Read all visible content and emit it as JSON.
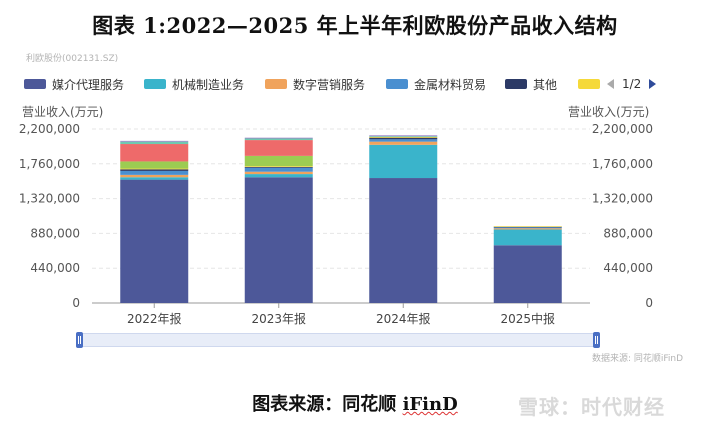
{
  "title": "图表 1:2022—2025 年上半年利欧股份产品收入结构",
  "subtitle": "利欧股份(002131.SZ)",
  "legend": {
    "items": [
      {
        "label": "媒介代理服务",
        "color": "#4d5899"
      },
      {
        "label": "机械制造业务",
        "color": "#3ab4cb"
      },
      {
        "label": "数字营销服务",
        "color": "#f0a35c"
      },
      {
        "label": "金属材料贸易",
        "color": "#4a8fd0"
      },
      {
        "label": "其他",
        "color": "#2c3a66"
      },
      {
        "label": "",
        "color": "#f5d93a"
      }
    ],
    "page": "1/2"
  },
  "y_axis_left_label": "营业收入(万元)",
  "y_axis_right_label": "营业收入(万元)",
  "data_source_note": "数据来源: 同花顺iFinD",
  "source_prefix": "图表来源：同花顺",
  "source_brand": "iFinD",
  "watermark": "雪球：时代财经",
  "chart_data": {
    "type": "bar",
    "stacked": true,
    "categories": [
      "2022年报",
      "2023年报",
      "2024年报",
      "2025中报"
    ],
    "ylim": [
      0,
      2200000
    ],
    "yticks": [
      0,
      440000,
      880000,
      1320000,
      1760000,
      2200000
    ],
    "ytick_labels": [
      "0",
      "440,000",
      "880,000",
      "1,320,000",
      "1,760,000",
      "2,200,000"
    ],
    "grid": true,
    "legend_position": "top",
    "series": [
      {
        "name": "媒介代理服务",
        "color": "#4d5899",
        "values": [
          1560000,
          1590000,
          1580000,
          730000
        ]
      },
      {
        "name": "机械制造业务",
        "color": "#3ab4cb",
        "values": [
          30000,
          40000,
          420000,
          200000
        ]
      },
      {
        "name": "数字营销服务",
        "color": "#f0a35c",
        "values": [
          30000,
          30000,
          40000,
          15000
        ]
      },
      {
        "name": "金属材料贸易",
        "color": "#4a8fd0",
        "values": [
          50000,
          50000,
          30000,
          15000
        ]
      },
      {
        "name": "其他",
        "color": "#2c3a66",
        "values": [
          20000,
          10000,
          20000,
          5000
        ]
      },
      {
        "name": "",
        "color": "#f5d93a",
        "values": [
          10000,
          10000,
          10000,
          5000
        ]
      },
      {
        "name": "",
        "color": "#9ccc52",
        "values": [
          90000,
          130000,
          0,
          0
        ]
      },
      {
        "name": "",
        "color": "#ee6a6a",
        "values": [
          220000,
          200000,
          0,
          0
        ]
      },
      {
        "name": "",
        "color": "#6fc9b0",
        "values": [
          30000,
          20000,
          10000,
          0
        ]
      },
      {
        "name": "",
        "color": "#9a7fc9",
        "values": [
          10000,
          10000,
          10000,
          0
        ]
      }
    ]
  }
}
